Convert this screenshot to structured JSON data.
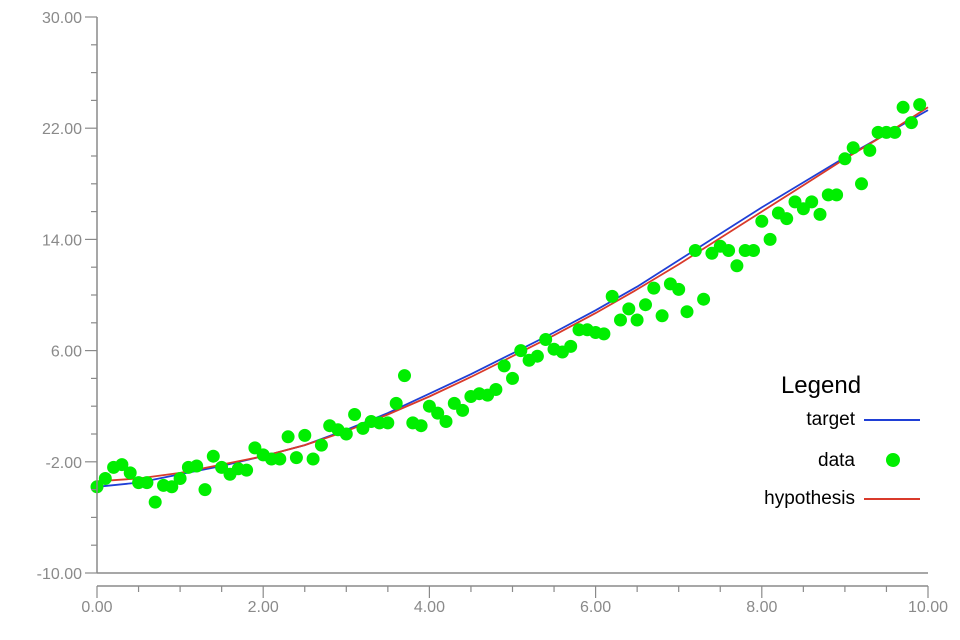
{
  "chart_data": {
    "type": "scatter",
    "title": "",
    "xlabel": "",
    "ylabel": "",
    "xlim": [
      0,
      10
    ],
    "ylim": [
      -10,
      30
    ],
    "x_tick_labels": [
      "0.00",
      "2.00",
      "4.00",
      "6.00",
      "8.00",
      "10.00"
    ],
    "y_tick_labels": [
      "-10.00",
      "-2.00",
      "6.00",
      "14.00",
      "22.00",
      "30.00"
    ],
    "grid": false,
    "legend": {
      "title": "Legend",
      "placement": "bottom-right",
      "entries": [
        {
          "label": "target",
          "marker": "line",
          "color": "#1f3fd6"
        },
        {
          "label": "data",
          "marker": "circle",
          "color": "#00ee00"
        },
        {
          "label": "hypothesis",
          "marker": "line",
          "color": "#d93a2b"
        }
      ]
    },
    "series": [
      {
        "name": "target",
        "kind": "line",
        "color": "#1f3fd6",
        "x": [
          0.0,
          0.5,
          1.0,
          1.5,
          2.0,
          2.5,
          3.0,
          3.5,
          4.0,
          4.5,
          5.0,
          5.5,
          6.0,
          6.5,
          7.0,
          7.5,
          8.0,
          8.5,
          9.0,
          9.5,
          10.0
        ],
        "y": [
          -3.8,
          -3.5,
          -2.9,
          -2.3,
          -1.6,
          -0.8,
          0.3,
          1.5,
          2.9,
          4.3,
          5.8,
          7.3,
          8.9,
          10.6,
          12.5,
          14.4,
          16.3,
          18.1,
          19.9,
          21.6,
          23.3
        ]
      },
      {
        "name": "hypothesis",
        "kind": "line",
        "color": "#d93a2b",
        "x": [
          0.0,
          0.5,
          1.0,
          1.5,
          2.0,
          2.5,
          3.0,
          3.5,
          4.0,
          4.5,
          5.0,
          5.5,
          6.0,
          6.5,
          7.0,
          7.5,
          8.0,
          8.5,
          9.0,
          9.5,
          10.0
        ],
        "y": [
          -3.4,
          -3.2,
          -2.8,
          -2.2,
          -1.6,
          -0.8,
          0.2,
          1.4,
          2.7,
          4.1,
          5.6,
          7.1,
          8.7,
          10.4,
          12.2,
          14.1,
          16.0,
          17.9,
          19.8,
          21.6,
          23.5
        ]
      },
      {
        "name": "data",
        "kind": "scatter",
        "color": "#00ee00",
        "x": [
          0.0,
          0.1,
          0.2,
          0.3,
          0.4,
          0.5,
          0.6,
          0.7,
          0.8,
          0.9,
          1.0,
          1.1,
          1.2,
          1.3,
          1.4,
          1.5,
          1.6,
          1.7,
          1.8,
          1.9,
          2.0,
          2.1,
          2.2,
          2.3,
          2.4,
          2.5,
          2.6,
          2.7,
          2.8,
          2.9,
          3.0,
          3.1,
          3.2,
          3.3,
          3.4,
          3.5,
          3.6,
          3.7,
          3.8,
          3.9,
          4.0,
          4.1,
          4.2,
          4.3,
          4.4,
          4.5,
          4.6,
          4.7,
          4.8,
          4.9,
          5.0,
          5.1,
          5.2,
          5.3,
          5.4,
          5.5,
          5.6,
          5.7,
          5.8,
          5.9,
          6.0,
          6.1,
          6.2,
          6.3,
          6.4,
          6.5,
          6.6,
          6.7,
          6.8,
          6.9,
          7.0,
          7.1,
          7.2,
          7.3,
          7.4,
          7.5,
          7.6,
          7.7,
          7.8,
          7.9,
          8.0,
          8.1,
          8.2,
          8.3,
          8.4,
          8.5,
          8.6,
          8.7,
          8.8,
          8.9,
          9.0,
          9.1,
          9.2,
          9.3,
          9.4,
          9.5,
          9.6,
          9.7,
          9.8,
          9.9
        ],
        "y": [
          -3.8,
          -3.2,
          -2.4,
          -2.2,
          -2.8,
          -3.5,
          -3.5,
          -4.9,
          -3.7,
          -3.8,
          -3.2,
          -2.4,
          -2.3,
          -4.0,
          -1.6,
          -2.4,
          -2.9,
          -2.5,
          -2.6,
          -1.0,
          -1.5,
          -1.8,
          -1.8,
          -0.2,
          -1.7,
          -0.1,
          -1.8,
          -0.8,
          0.6,
          0.3,
          0.0,
          1.4,
          0.4,
          0.9,
          0.8,
          0.8,
          2.2,
          4.2,
          0.8,
          0.6,
          2.0,
          1.5,
          0.9,
          2.2,
          1.7,
          2.7,
          2.9,
          2.8,
          3.2,
          4.9,
          4.0,
          6.0,
          5.3,
          5.6,
          6.8,
          6.1,
          5.9,
          6.3,
          7.5,
          7.5,
          7.3,
          7.2,
          9.9,
          8.2,
          9.0,
          8.2,
          9.3,
          10.5,
          8.5,
          10.8,
          10.4,
          8.8,
          13.2,
          9.7,
          13.0,
          13.5,
          13.2,
          12.1,
          13.2,
          13.2,
          15.3,
          14.0,
          15.9,
          15.5,
          16.7,
          16.2,
          16.7,
          15.8,
          17.2,
          17.2,
          19.8,
          20.6,
          18.0,
          20.4,
          21.7,
          21.7,
          21.7,
          23.5,
          22.4,
          23.7
        ]
      }
    ]
  }
}
